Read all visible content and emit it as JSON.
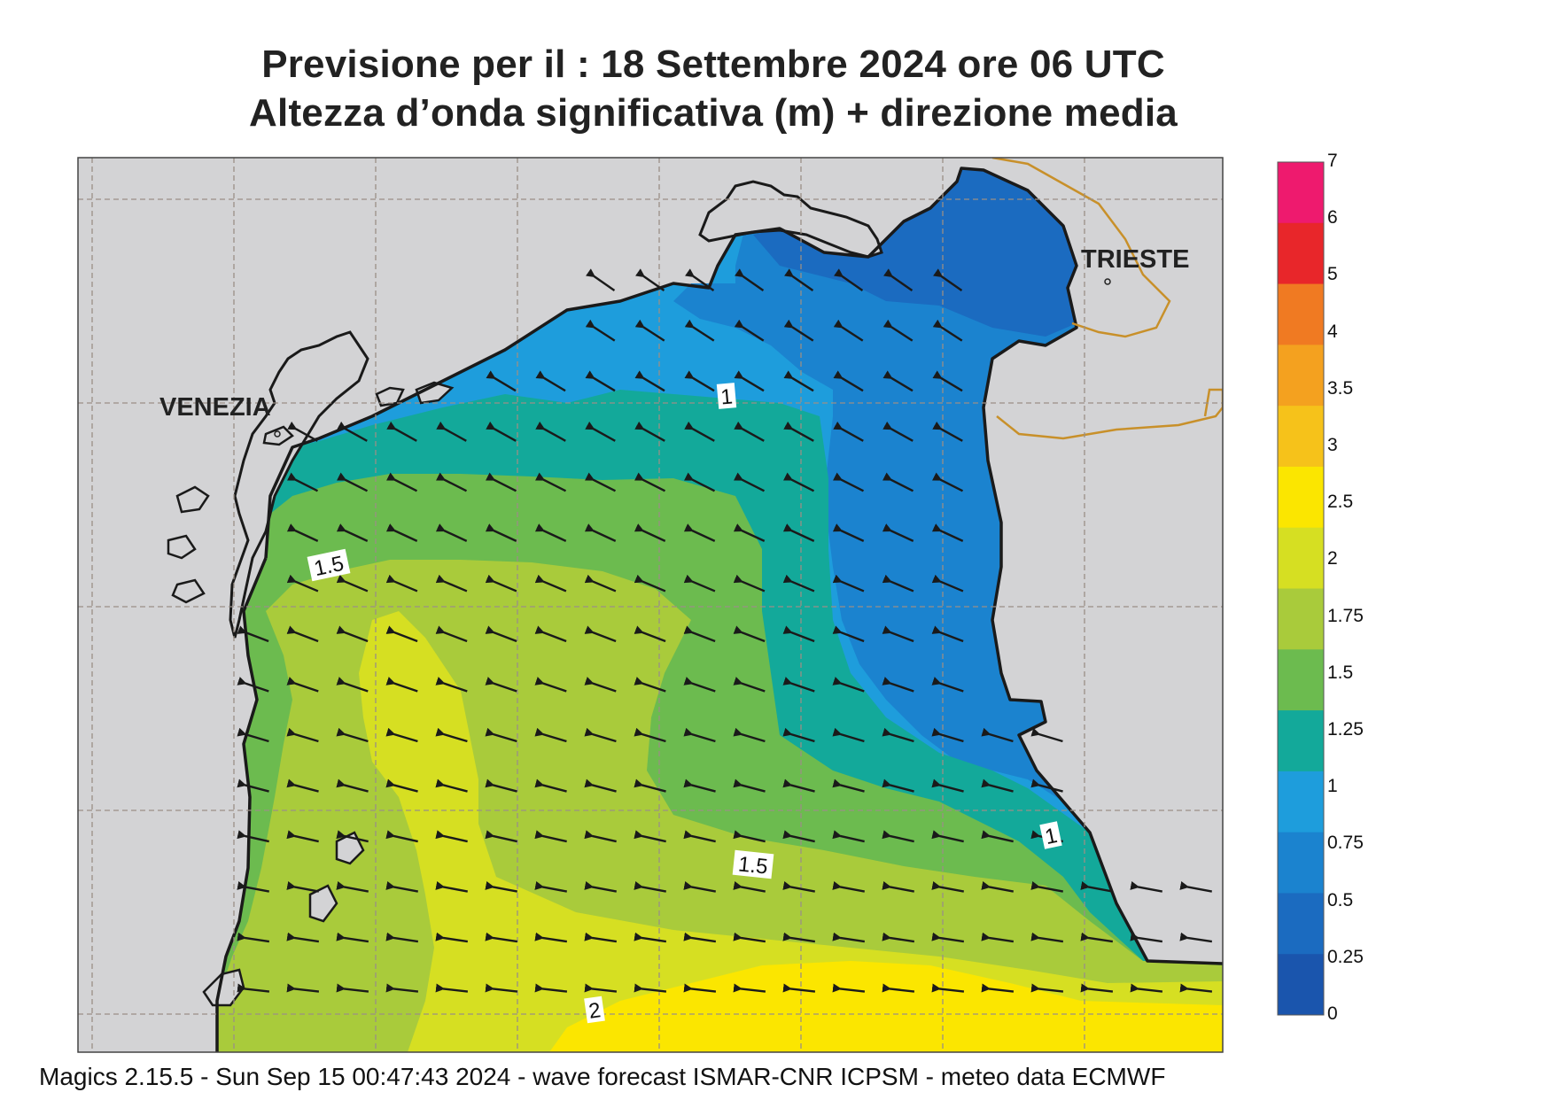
{
  "title": {
    "line1": "Previsione per il  :  18 Settembre 2024   ore 06 UTC",
    "line2": "Altezza d’onda significativa (m) + direzione media"
  },
  "map": {
    "cities": [
      {
        "name": "VENEZIA"
      },
      {
        "name": "TRIESTE"
      }
    ],
    "contour_labels": [
      "1",
      "1.5",
      "1.5",
      "1",
      "2"
    ]
  },
  "legend": {
    "labels": [
      "7",
      "6",
      "5",
      "4",
      "3.5",
      "3",
      "2.5",
      "2",
      "1.75",
      "1.5",
      "1.25",
      "1",
      "0.75",
      "0.5",
      "0.25",
      "0"
    ],
    "colors": [
      "#ee1a6e",
      "#e8262a",
      "#f07a22",
      "#f4a11f",
      "#f6c21a",
      "#fbe600",
      "#d6df22",
      "#a9cb3b",
      "#6cbb4f",
      "#13a99a",
      "#1e9ddc",
      "#1b83cf",
      "#1b6bc0",
      "#1a55ad"
    ]
  },
  "colors": {
    "land": "#d3d3d5",
    "coast": "#1a1a1a",
    "grid": "#9a8f86",
    "border": "#c8902a"
  },
  "footer": "Magics 2.15.5 - Sun Sep 15 00:47:43 2024 - wave forecast  ISMAR-CNR  ICPSM - meteo data   ECMWF"
}
